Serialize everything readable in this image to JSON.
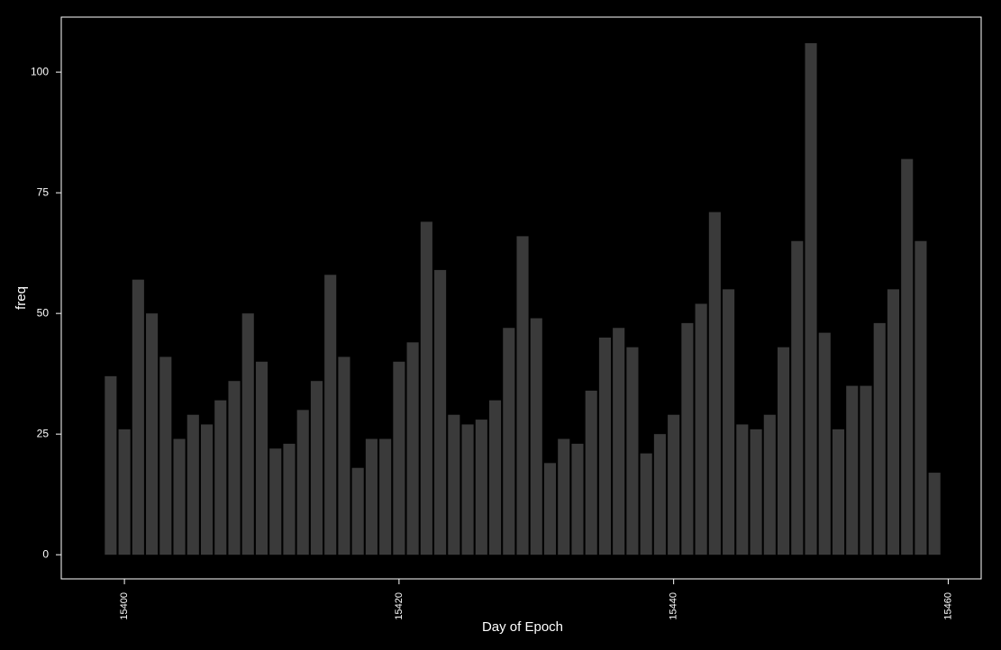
{
  "chart_data": {
    "type": "bar",
    "x_label": "Day of Epoch",
    "y_label": "freq",
    "x": [
      15399,
      15400,
      15401,
      15402,
      15403,
      15404,
      15405,
      15406,
      15407,
      15408,
      15409,
      15410,
      15411,
      15412,
      15413,
      15414,
      15415,
      15416,
      15417,
      15418,
      15419,
      15420,
      15421,
      15422,
      15423,
      15424,
      15425,
      15426,
      15427,
      15428,
      15429,
      15430,
      15431,
      15432,
      15433,
      15434,
      15435,
      15436,
      15437,
      15438,
      15439,
      15440,
      15441,
      15442,
      15443,
      15444,
      15445,
      15446,
      15447,
      15448,
      15449,
      15450,
      15451,
      15452,
      15453,
      15454,
      15455,
      15456,
      15457,
      15458,
      15459
    ],
    "values": [
      37,
      26,
      57,
      50,
      41,
      24,
      29,
      27,
      32,
      36,
      50,
      40,
      22,
      23,
      30,
      36,
      58,
      41,
      18,
      24,
      24,
      40,
      44,
      69,
      59,
      29,
      27,
      28,
      32,
      47,
      66,
      49,
      19,
      24,
      23,
      34,
      45,
      47,
      43,
      21,
      25,
      29,
      48,
      52,
      71,
      55,
      27,
      26,
      29,
      43,
      65,
      106,
      46,
      26,
      35,
      35,
      48,
      55,
      82,
      65,
      17
    ],
    "color": "#3a3a3a",
    "xlim": [
      15395.4,
      15462.4
    ],
    "xticks": [
      15400,
      15420,
      15440,
      15460
    ],
    "ylim": [
      -5,
      111.4
    ],
    "yticks": [
      0,
      25,
      50,
      75,
      100
    ],
    "grid": false
  }
}
